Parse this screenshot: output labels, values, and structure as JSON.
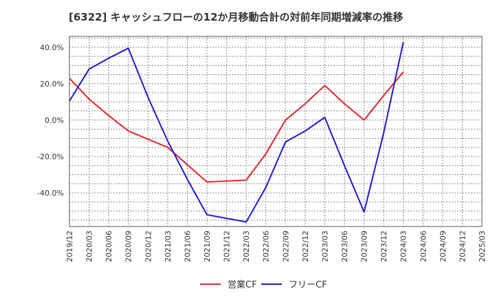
{
  "chart_data": {
    "type": "line",
    "title": "[6322]  キャッシュフローの12か月移動合計の対前年同期増減率の推移",
    "xlabel": "",
    "ylabel": "",
    "x": [
      "2019/12",
      "2020/03",
      "2020/06",
      "2020/09",
      "2020/12",
      "2021/03",
      "2021/06",
      "2021/09",
      "2021/12",
      "2022/03",
      "2022/06",
      "2022/09",
      "2022/12",
      "2023/03",
      "2023/06",
      "2023/09",
      "2023/12",
      "2024/03",
      "2024/06",
      "2024/09",
      "2024/12",
      "2025/03"
    ],
    "ylim": [
      -58.5,
      46.0
    ],
    "yticks": [
      40,
      20,
      0,
      -20,
      -40
    ],
    "ytick_labels": [
      "40.0%",
      "20.0%",
      "0.0%",
      "-20.0%",
      "-40.0%"
    ],
    "grid": true,
    "legend_position": "bottom",
    "series": [
      {
        "name": "営業CF",
        "color": "#e8252a",
        "values": [
          23.0,
          11.5,
          2.5,
          -6.0,
          -10.5,
          -15.0,
          -24.5,
          -34.0,
          -33.5,
          -33.0,
          -18.5,
          0.0,
          9.0,
          19.0,
          9.0,
          0.0,
          13.5,
          26.5,
          null,
          null,
          null,
          null
        ]
      },
      {
        "name": "フリーCF",
        "color": "#1a1adb",
        "values": [
          10.5,
          28.0,
          34.0,
          39.5,
          12.5,
          -11.5,
          -32.5,
          -52.0,
          -54.0,
          -56.0,
          -37.0,
          -12.0,
          -6.0,
          1.5,
          -25.0,
          -50.5,
          -7.0,
          43.0,
          null,
          null,
          null,
          null
        ]
      }
    ]
  }
}
